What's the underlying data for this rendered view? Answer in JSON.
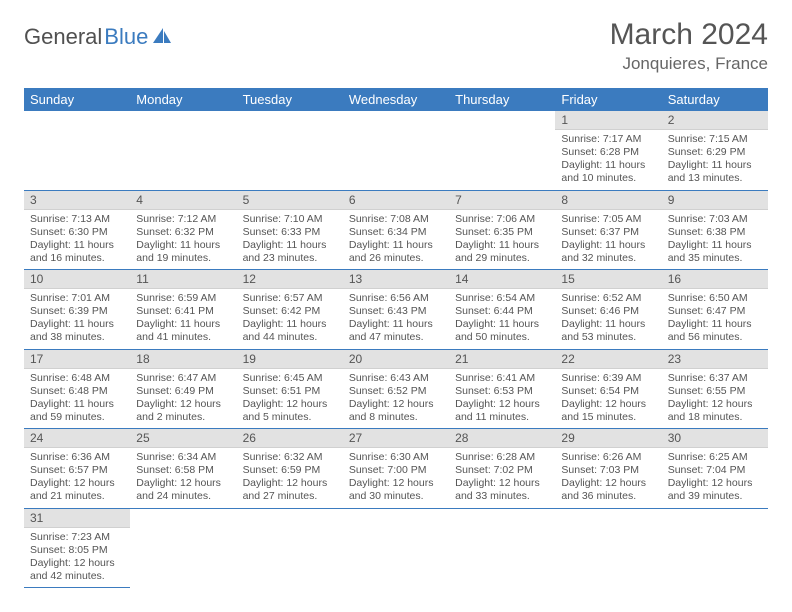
{
  "brand": {
    "word1": "General",
    "word2": "Blue",
    "sail_color": "#3b7bbf"
  },
  "title": "March 2024",
  "location": "Jonquieres, France",
  "days_of_week": [
    "Sunday",
    "Monday",
    "Tuesday",
    "Wednesday",
    "Thursday",
    "Friday",
    "Saturday"
  ],
  "colors": {
    "header_bg": "#3b7bbf",
    "header_fg": "#ffffff",
    "daynum_bg": "#e2e2e2",
    "row_border": "#3b7bbf",
    "text": "#555555"
  },
  "weeks": [
    [
      null,
      null,
      null,
      null,
      null,
      {
        "n": "1",
        "sunrise": "7:17 AM",
        "sunset": "6:28 PM",
        "daylight": "11 hours and 10 minutes."
      },
      {
        "n": "2",
        "sunrise": "7:15 AM",
        "sunset": "6:29 PM",
        "daylight": "11 hours and 13 minutes."
      }
    ],
    [
      {
        "n": "3",
        "sunrise": "7:13 AM",
        "sunset": "6:30 PM",
        "daylight": "11 hours and 16 minutes."
      },
      {
        "n": "4",
        "sunrise": "7:12 AM",
        "sunset": "6:32 PM",
        "daylight": "11 hours and 19 minutes."
      },
      {
        "n": "5",
        "sunrise": "7:10 AM",
        "sunset": "6:33 PM",
        "daylight": "11 hours and 23 minutes."
      },
      {
        "n": "6",
        "sunrise": "7:08 AM",
        "sunset": "6:34 PM",
        "daylight": "11 hours and 26 minutes."
      },
      {
        "n": "7",
        "sunrise": "7:06 AM",
        "sunset": "6:35 PM",
        "daylight": "11 hours and 29 minutes."
      },
      {
        "n": "8",
        "sunrise": "7:05 AM",
        "sunset": "6:37 PM",
        "daylight": "11 hours and 32 minutes."
      },
      {
        "n": "9",
        "sunrise": "7:03 AM",
        "sunset": "6:38 PM",
        "daylight": "11 hours and 35 minutes."
      }
    ],
    [
      {
        "n": "10",
        "sunrise": "7:01 AM",
        "sunset": "6:39 PM",
        "daylight": "11 hours and 38 minutes."
      },
      {
        "n": "11",
        "sunrise": "6:59 AM",
        "sunset": "6:41 PM",
        "daylight": "11 hours and 41 minutes."
      },
      {
        "n": "12",
        "sunrise": "6:57 AM",
        "sunset": "6:42 PM",
        "daylight": "11 hours and 44 minutes."
      },
      {
        "n": "13",
        "sunrise": "6:56 AM",
        "sunset": "6:43 PM",
        "daylight": "11 hours and 47 minutes."
      },
      {
        "n": "14",
        "sunrise": "6:54 AM",
        "sunset": "6:44 PM",
        "daylight": "11 hours and 50 minutes."
      },
      {
        "n": "15",
        "sunrise": "6:52 AM",
        "sunset": "6:46 PM",
        "daylight": "11 hours and 53 minutes."
      },
      {
        "n": "16",
        "sunrise": "6:50 AM",
        "sunset": "6:47 PM",
        "daylight": "11 hours and 56 minutes."
      }
    ],
    [
      {
        "n": "17",
        "sunrise": "6:48 AM",
        "sunset": "6:48 PM",
        "daylight": "11 hours and 59 minutes."
      },
      {
        "n": "18",
        "sunrise": "6:47 AM",
        "sunset": "6:49 PM",
        "daylight": "12 hours and 2 minutes."
      },
      {
        "n": "19",
        "sunrise": "6:45 AM",
        "sunset": "6:51 PM",
        "daylight": "12 hours and 5 minutes."
      },
      {
        "n": "20",
        "sunrise": "6:43 AM",
        "sunset": "6:52 PM",
        "daylight": "12 hours and 8 minutes."
      },
      {
        "n": "21",
        "sunrise": "6:41 AM",
        "sunset": "6:53 PM",
        "daylight": "12 hours and 11 minutes."
      },
      {
        "n": "22",
        "sunrise": "6:39 AM",
        "sunset": "6:54 PM",
        "daylight": "12 hours and 15 minutes."
      },
      {
        "n": "23",
        "sunrise": "6:37 AM",
        "sunset": "6:55 PM",
        "daylight": "12 hours and 18 minutes."
      }
    ],
    [
      {
        "n": "24",
        "sunrise": "6:36 AM",
        "sunset": "6:57 PM",
        "daylight": "12 hours and 21 minutes."
      },
      {
        "n": "25",
        "sunrise": "6:34 AM",
        "sunset": "6:58 PM",
        "daylight": "12 hours and 24 minutes."
      },
      {
        "n": "26",
        "sunrise": "6:32 AM",
        "sunset": "6:59 PM",
        "daylight": "12 hours and 27 minutes."
      },
      {
        "n": "27",
        "sunrise": "6:30 AM",
        "sunset": "7:00 PM",
        "daylight": "12 hours and 30 minutes."
      },
      {
        "n": "28",
        "sunrise": "6:28 AM",
        "sunset": "7:02 PM",
        "daylight": "12 hours and 33 minutes."
      },
      {
        "n": "29",
        "sunrise": "6:26 AM",
        "sunset": "7:03 PM",
        "daylight": "12 hours and 36 minutes."
      },
      {
        "n": "30",
        "sunrise": "6:25 AM",
        "sunset": "7:04 PM",
        "daylight": "12 hours and 39 minutes."
      }
    ],
    [
      {
        "n": "31",
        "sunrise": "7:23 AM",
        "sunset": "8:05 PM",
        "daylight": "12 hours and 42 minutes."
      },
      null,
      null,
      null,
      null,
      null,
      null
    ]
  ],
  "labels": {
    "sunrise": "Sunrise:",
    "sunset": "Sunset:",
    "daylight": "Daylight:"
  }
}
